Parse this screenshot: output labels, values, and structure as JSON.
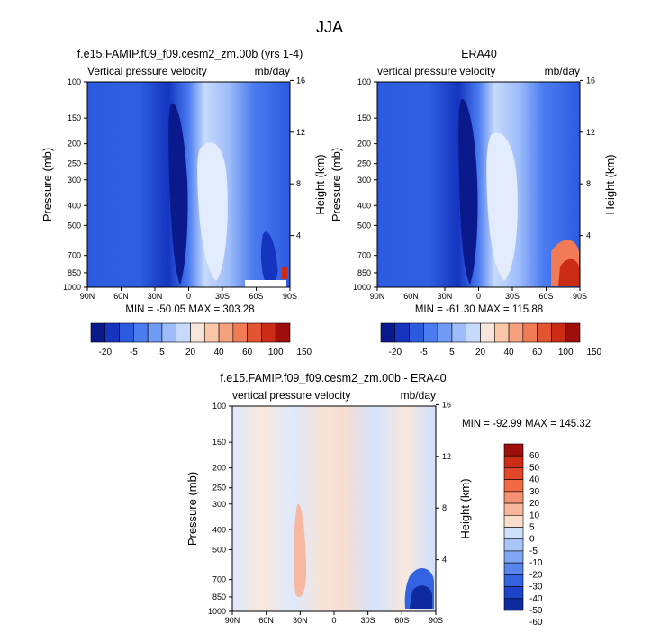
{
  "figure": {
    "title": "JJA"
  },
  "chart_data": [
    {
      "type": "heatmap",
      "title": "f.e15.FAMIP.f09_f09.cesm2_zm.00b (yrs 1-4)",
      "left_header": "Vertical pressure velocity",
      "right_header": "mb/day",
      "ylabel": "Pressure (mb)",
      "ylabel_right": "Height (km)",
      "x_ticks": [
        "90N",
        "60N",
        "30N",
        "0",
        "30S",
        "60S",
        "90S"
      ],
      "y_ticks": [
        "100",
        "150",
        "200",
        "250",
        "300",
        "400",
        "500",
        "700",
        "850",
        "1000"
      ],
      "y_ticks_right": [
        "16",
        "12",
        "8",
        "4"
      ],
      "stats": "MIN = -50.05  MAX = 303.28",
      "colorbar_labels": [
        "-20",
        "-5",
        "5",
        "20",
        "40",
        "60",
        "100",
        "150"
      ]
    },
    {
      "type": "heatmap",
      "title": "ERA40",
      "left_header": "vertical pressure velocity",
      "right_header": "mb/day",
      "ylabel": "Pressure (mb)",
      "ylabel_right": "Height (km)",
      "x_ticks": [
        "90N",
        "60N",
        "30N",
        "0",
        "30S",
        "60S",
        "90S"
      ],
      "y_ticks": [
        "100",
        "150",
        "200",
        "250",
        "300",
        "400",
        "500",
        "700",
        "850",
        "1000"
      ],
      "y_ticks_right": [
        "16",
        "12",
        "8",
        "4"
      ],
      "stats": "MIN = -61.30  MAX = 115.88",
      "colorbar_labels": [
        "-20",
        "-5",
        "5",
        "20",
        "40",
        "60",
        "100",
        "150"
      ]
    },
    {
      "type": "heatmap",
      "title": "f.e15.FAMIP.f09_f09.cesm2_zm.00b - ERA40",
      "left_header": "vertical pressure velocity",
      "right_header": "mb/day",
      "ylabel": "Pressure (mb)",
      "ylabel_right": "Height (km)",
      "x_ticks": [
        "90N",
        "60N",
        "30N",
        "0",
        "30S",
        "60S",
        "90S"
      ],
      "y_ticks": [
        "100",
        "150",
        "200",
        "250",
        "300",
        "400",
        "500",
        "700",
        "850",
        "1000"
      ],
      "y_ticks_right": [
        "16",
        "12",
        "8",
        "4"
      ],
      "stats": "MIN = -92.99  MAX = 145.32",
      "colorbar_labels": [
        "60",
        "50",
        "40",
        "30",
        "20",
        "10",
        "5",
        "0",
        "-5",
        "-10",
        "-20",
        "-30",
        "-40",
        "-50",
        "-60"
      ]
    }
  ],
  "colorbars": {
    "absolute_colors": [
      "#0a1a8c",
      "#1535c0",
      "#2c5be0",
      "#4b7cf0",
      "#6f9bf5",
      "#9dbcf9",
      "#c7dafb",
      "#f7e6dc",
      "#f9c6a8",
      "#f6a07d",
      "#f07b55",
      "#e35432",
      "#cc2b15",
      "#9e0e0a"
    ],
    "difference_colors": [
      "#9e0e0a",
      "#cc2b15",
      "#e3472a",
      "#f06a45",
      "#f59170",
      "#f8b79a",
      "#fadccb",
      "#cfe0fb",
      "#a9c6f8",
      "#81a6f3",
      "#5a85ec",
      "#3463e2",
      "#1c44c8",
      "#0d2a9e"
    ]
  }
}
